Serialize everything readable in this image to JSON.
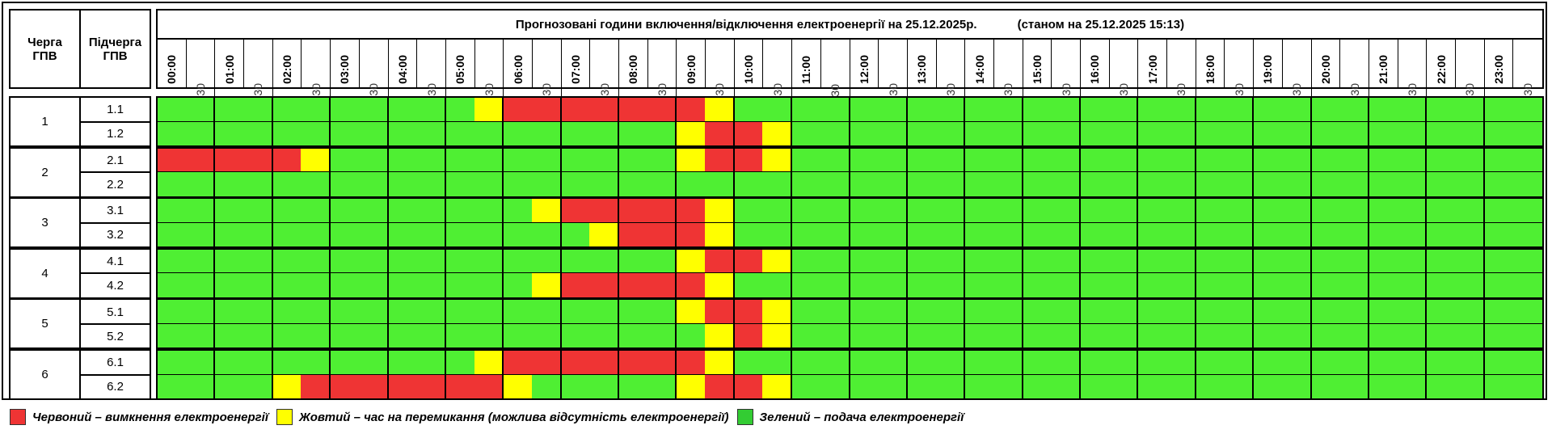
{
  "header": {
    "queue_label": "Черга\nГПВ",
    "subqueue_label": "Підчерга\nГПВ",
    "title": "Прогнозовані години включення/відключення електроенергії на 25.12.2025р.            (станом на 25.12.2025 15:13)"
  },
  "times": [
    "00:00",
    "00:30",
    "01:00",
    "01:30",
    "02:00",
    "02:30",
    "03:00",
    "03:30",
    "04:00",
    "04:30",
    "05:00",
    "05:30",
    "06:00",
    "06:30",
    "07:00",
    "07:30",
    "08:00",
    "08:30",
    "09:00",
    "09:30",
    "10:00",
    "10:30",
    "11:00",
    "11:30",
    "12:00",
    "12:30",
    "13:00",
    "13:30",
    "14:00",
    "14:30",
    "15:00",
    "15:30",
    "16:00",
    "16:30",
    "17:00",
    "17:30",
    "18:00",
    "18:30",
    "19:00",
    "19:30",
    "20:00",
    "20:30",
    "21:00",
    "21:30",
    "22:00",
    "22:30",
    "23:00",
    "23:30"
  ],
  "colors": {
    "red": "#EF3434",
    "yellow": "#FFFF00",
    "green": "#4FEF33",
    "legend_green": "#33CC33"
  },
  "queues": [
    {
      "label": "1",
      "subs": [
        {
          "label": "1.1",
          "periods": [
            [
              "05:30",
              "06:00",
              "yellow"
            ],
            [
              "06:00",
              "09:30",
              "red"
            ],
            [
              "09:30",
              "10:00",
              "yellow"
            ]
          ]
        },
        {
          "label": "1.2",
          "periods": [
            [
              "09:00",
              "09:30",
              "yellow"
            ],
            [
              "09:30",
              "10:30",
              "red"
            ],
            [
              "10:30",
              "11:00",
              "yellow"
            ]
          ]
        }
      ]
    },
    {
      "label": "2",
      "subs": [
        {
          "label": "2.1",
          "periods": [
            [
              "00:00",
              "02:30",
              "red"
            ],
            [
              "02:30",
              "03:00",
              "yellow"
            ],
            [
              "09:00",
              "09:30",
              "yellow"
            ],
            [
              "09:30",
              "10:30",
              "red"
            ],
            [
              "10:30",
              "11:00",
              "yellow"
            ]
          ]
        },
        {
          "label": "2.2",
          "periods": []
        }
      ]
    },
    {
      "label": "3",
      "subs": [
        {
          "label": "3.1",
          "periods": [
            [
              "06:30",
              "07:00",
              "yellow"
            ],
            [
              "07:00",
              "09:30",
              "red"
            ],
            [
              "09:30",
              "10:00",
              "yellow"
            ]
          ]
        },
        {
          "label": "3.2",
          "periods": [
            [
              "07:30",
              "08:00",
              "yellow"
            ],
            [
              "08:00",
              "09:30",
              "red"
            ],
            [
              "09:30",
              "10:00",
              "yellow"
            ]
          ]
        }
      ]
    },
    {
      "label": "4",
      "subs": [
        {
          "label": "4.1",
          "periods": [
            [
              "09:00",
              "09:30",
              "yellow"
            ],
            [
              "09:30",
              "10:30",
              "red"
            ],
            [
              "10:30",
              "11:00",
              "yellow"
            ]
          ]
        },
        {
          "label": "4.2",
          "periods": [
            [
              "06:30",
              "07:00",
              "yellow"
            ],
            [
              "07:00",
              "09:30",
              "red"
            ],
            [
              "09:30",
              "10:00",
              "yellow"
            ]
          ]
        }
      ]
    },
    {
      "label": "5",
      "subs": [
        {
          "label": "5.1",
          "periods": [
            [
              "09:00",
              "09:30",
              "yellow"
            ],
            [
              "09:30",
              "10:30",
              "red"
            ],
            [
              "10:30",
              "11:00",
              "yellow"
            ]
          ]
        },
        {
          "label": "5.2",
          "periods": [
            [
              "09:30",
              "10:00",
              "yellow"
            ],
            [
              "10:00",
              "10:30",
              "red"
            ],
            [
              "10:30",
              "11:00",
              "yellow"
            ]
          ]
        }
      ]
    },
    {
      "label": "6",
      "subs": [
        {
          "label": "6.1",
          "periods": [
            [
              "05:30",
              "06:00",
              "yellow"
            ],
            [
              "06:00",
              "09:30",
              "red"
            ],
            [
              "09:30",
              "10:00",
              "yellow"
            ]
          ]
        },
        {
          "label": "6.2",
          "periods": [
            [
              "02:00",
              "02:30",
              "yellow"
            ],
            [
              "02:30",
              "06:00",
              "red"
            ],
            [
              "06:00",
              "06:30",
              "yellow"
            ],
            [
              "09:00",
              "09:30",
              "yellow"
            ],
            [
              "09:30",
              "10:30",
              "red"
            ],
            [
              "10:30",
              "11:00",
              "yellow"
            ]
          ]
        }
      ]
    }
  ],
  "legend": {
    "red": "Червоний – вимкнення електроенергії",
    "yellow": "Жовтий – час на перемикання (можлива відсутність електроенергії)",
    "green": "Зелений – подача електроенергії"
  }
}
